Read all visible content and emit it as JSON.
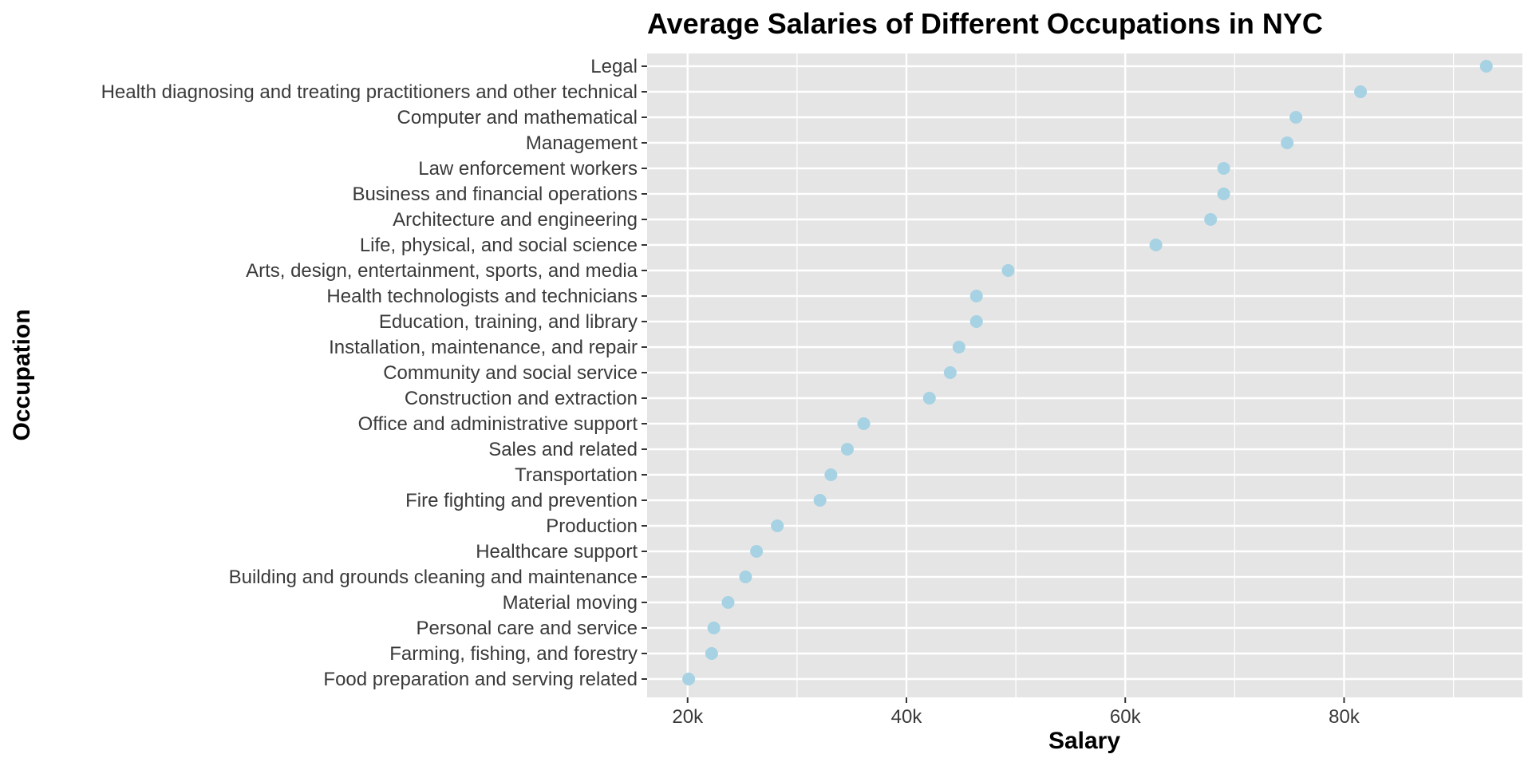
{
  "chart_data": {
    "type": "scatter",
    "title": "Average Salaries of Different Occupations in NYC",
    "xlabel": "Salary",
    "ylabel": "Occupation",
    "xlim": [
      16300,
      96300
    ],
    "x_ticks": [
      20000,
      40000,
      60000,
      80000
    ],
    "x_tick_labels": [
      "20k",
      "40k",
      "60k",
      "80k"
    ],
    "grid": true,
    "point_color": "#a6d2e3",
    "panel_color": "#e5e5e5",
    "grid_color": "#ffffff",
    "categories": [
      "Legal",
      "Health diagnosing and treating practitioners and other technical",
      "Computer and mathematical",
      "Management",
      "Law enforcement workers",
      "Business and financial operations",
      "Architecture and engineering",
      "Life, physical, and social science",
      "Arts, design, entertainment, sports, and media",
      "Health technologists and technicians",
      "Education, training, and library",
      "Installation, maintenance, and repair",
      "Community and social service",
      "Construction and extraction",
      "Office and administrative support",
      "Sales and related",
      "Transportation",
      "Fire fighting and prevention",
      "Production",
      "Healthcare support",
      "Building and grounds cleaning and maintenance",
      "Material moving",
      "Personal care and service",
      "Farming, fishing, and forestry",
      "Food preparation and serving related"
    ],
    "values": [
      93000,
      81500,
      75600,
      74800,
      69000,
      69000,
      67800,
      62800,
      49300,
      46400,
      46400,
      44800,
      44000,
      42100,
      36100,
      34600,
      33100,
      32100,
      28200,
      26300,
      25300,
      23700,
      22400,
      22200,
      20100
    ]
  }
}
